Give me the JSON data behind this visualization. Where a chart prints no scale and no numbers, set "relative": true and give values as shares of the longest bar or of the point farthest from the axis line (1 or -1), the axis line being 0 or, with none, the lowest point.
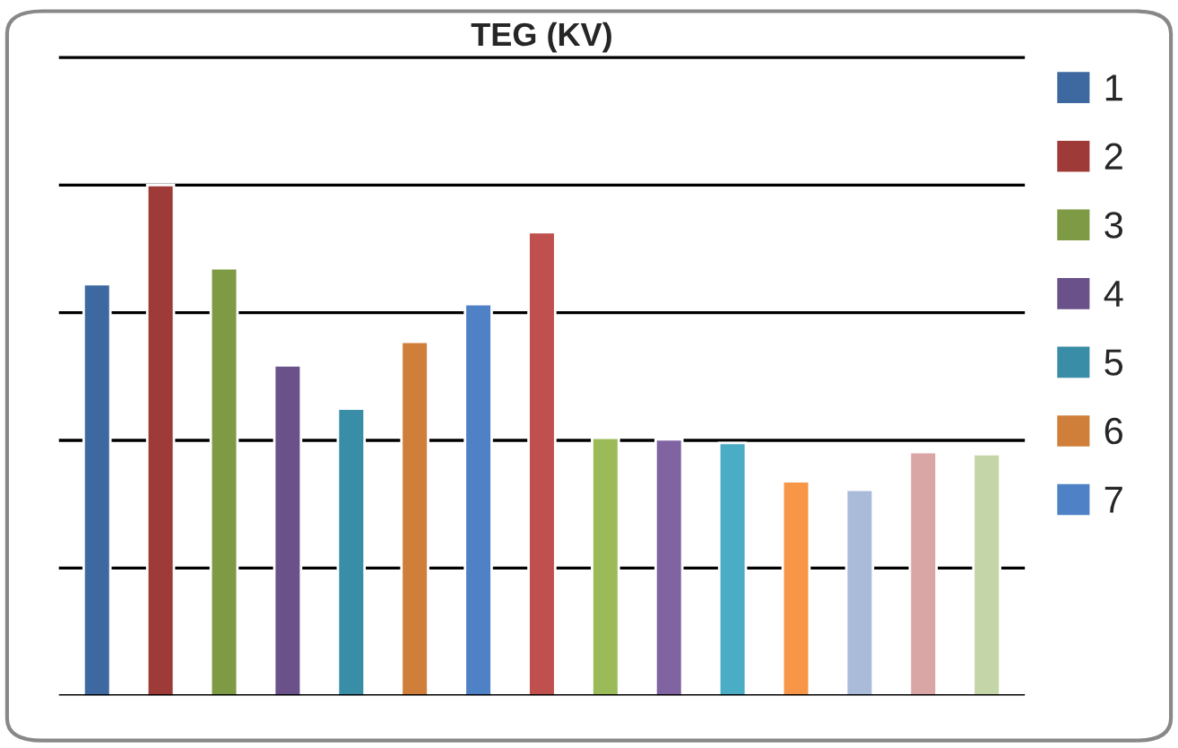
{
  "chart_data": {
    "type": "bar",
    "title": "TEG (KV)",
    "relative": true,
    "grid": "y",
    "legend": "right",
    "stacked": true,
    "categories": [
      null,
      null,
      null,
      null,
      null,
      null,
      null,
      null,
      null,
      null,
      null,
      null,
      null,
      null,
      null
    ],
    "series": [
      {
        "name": "1",
        "color": "#3d68a0",
        "values": [
          0.806,
          null,
          null,
          null,
          null,
          null,
          null,
          null,
          null,
          null,
          null,
          null,
          null,
          null,
          null
        ]
      },
      {
        "name": "2",
        "color": "#9e3b39",
        "values": [
          null,
          1,
          null,
          null,
          null,
          null,
          null,
          null,
          null,
          null,
          null,
          null,
          null,
          null,
          null
        ]
      },
      {
        "name": "3",
        "color": "#7e9a44",
        "values": [
          null,
          null,
          0.837,
          null,
          null,
          null,
          null,
          null,
          null,
          null,
          null,
          null,
          null,
          null,
          null
        ]
      },
      {
        "name": "4",
        "color": "#6a5189",
        "values": [
          null,
          null,
          null,
          0.647,
          null,
          null,
          null,
          null,
          null,
          null,
          null,
          null,
          null,
          null,
          null
        ]
      },
      {
        "name": "5",
        "color": "#3a8da6",
        "values": [
          null,
          null,
          null,
          null,
          0.562,
          null,
          null,
          null,
          null,
          null,
          null,
          null,
          null,
          null,
          null
        ]
      },
      {
        "name": "6",
        "color": "#d07f3a",
        "values": [
          null,
          null,
          null,
          null,
          null,
          0.693,
          null,
          null,
          null,
          null,
          null,
          null,
          null,
          null,
          null
        ]
      },
      {
        "name": "7",
        "color": "#4f81c6",
        "values": [
          null,
          null,
          null,
          null,
          null,
          null,
          0.767,
          null,
          null,
          null,
          null,
          null,
          null,
          null,
          null
        ]
      },
      {
        "colors": [
          null,
          null,
          null,
          null,
          null,
          null,
          null,
          "#c0504d",
          "#9bbb59",
          "#8064a2",
          "#4bacc6",
          "#f79646",
          "#aabbd9",
          "#d9a5a5",
          "#c4d5a8"
        ],
        "values": [
          null,
          null,
          null,
          null,
          null,
          null,
          null,
          0.908,
          0.505,
          0.502,
          0.495,
          0.42,
          0.403,
          0.477,
          0.473
        ]
      }
    ]
  }
}
